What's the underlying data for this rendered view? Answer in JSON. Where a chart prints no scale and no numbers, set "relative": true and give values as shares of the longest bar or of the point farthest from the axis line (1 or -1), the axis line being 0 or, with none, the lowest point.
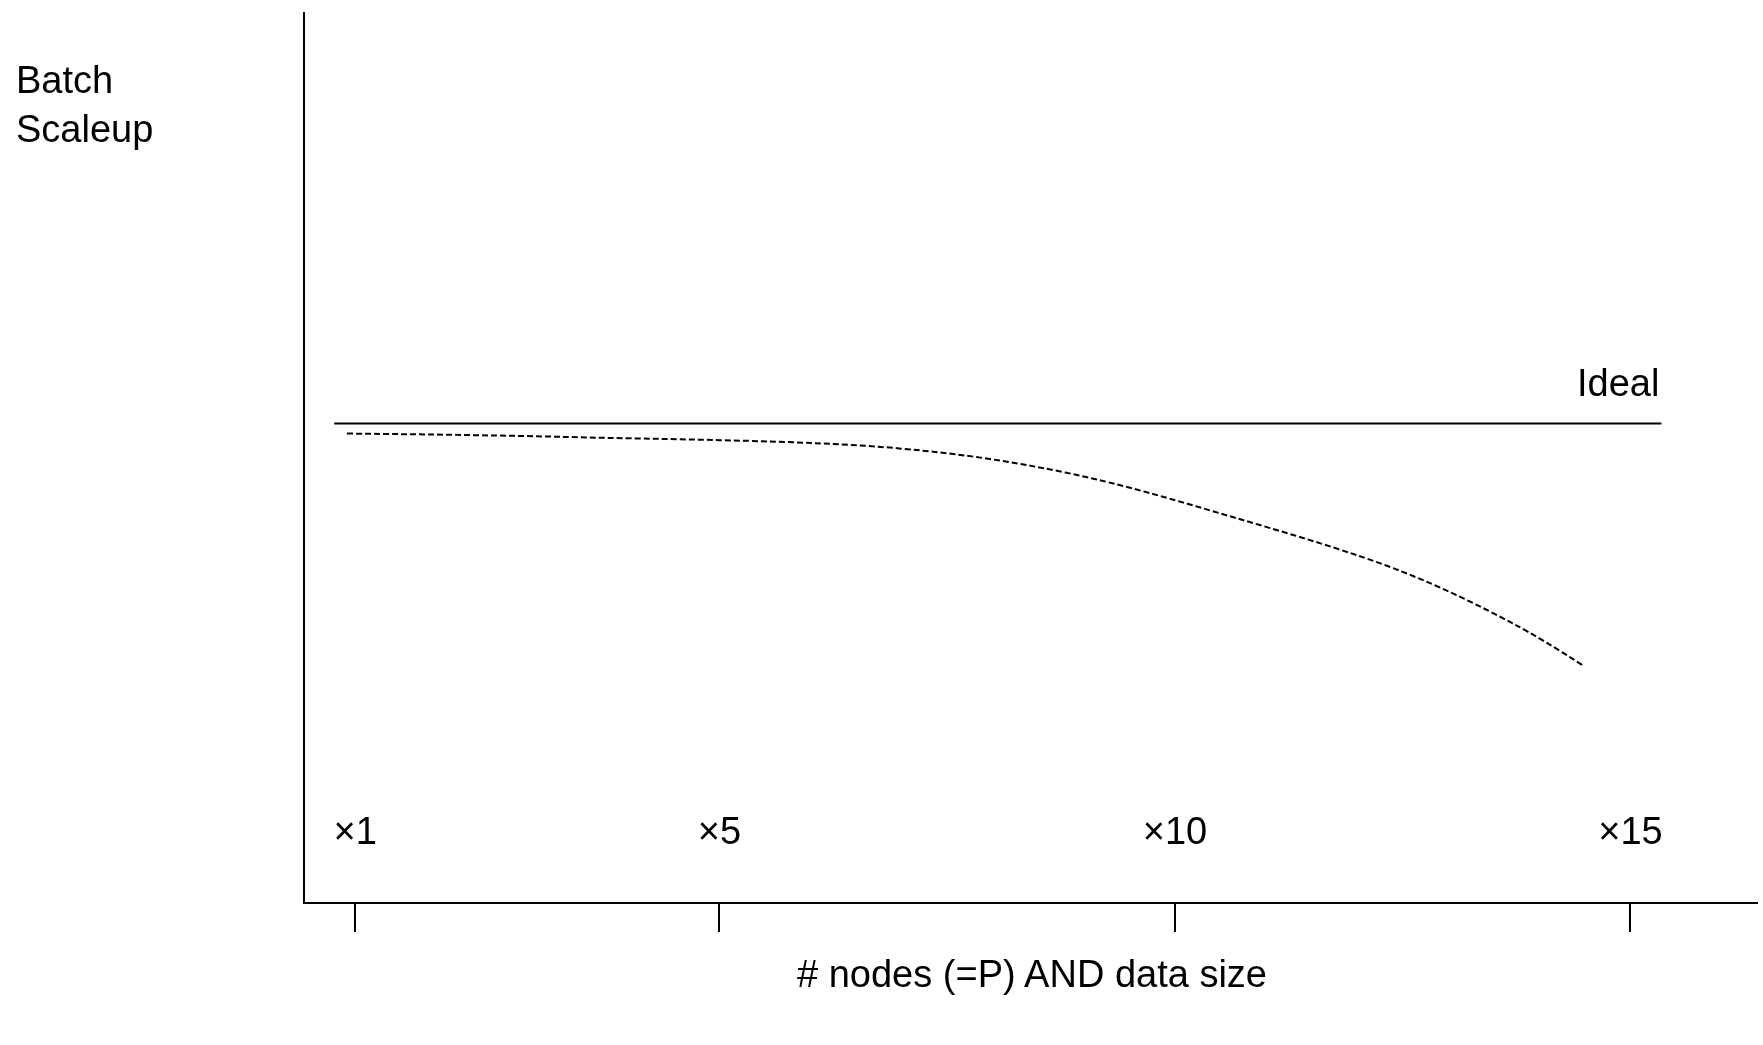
{
  "chart_data": {
    "type": "line",
    "relative": true,
    "xlabel": "# nodes (=P) AND data size",
    "annotations": [
      "Batch Scaleup"
    ],
    "xlim": [
      0.45,
      16.4
    ],
    "xticks": [
      {
        "value": 1,
        "label": "×1"
      },
      {
        "value": 5,
        "label": "×5"
      },
      {
        "value": 10,
        "label": "×10"
      },
      {
        "value": 15,
        "label": "×15"
      }
    ],
    "legend": false,
    "marker": "none",
    "series": [
      {
        "name": "Ideal",
        "color": "#000000",
        "line_style": "solid",
        "x": [
          0.77,
          15.34
        ],
        "values": [
          1,
          1
        ]
      },
      {
        "color": "#000000",
        "line_style": "dashed",
        "x": [
          0.91,
          3.28,
          6.97,
          8.81,
          10.66,
          12.5,
          13.73,
          14.49
        ],
        "values": [
          0.979,
          0.972,
          0.948,
          0.897,
          0.803,
          0.69,
          0.58,
          0.493
        ]
      }
    ]
  }
}
